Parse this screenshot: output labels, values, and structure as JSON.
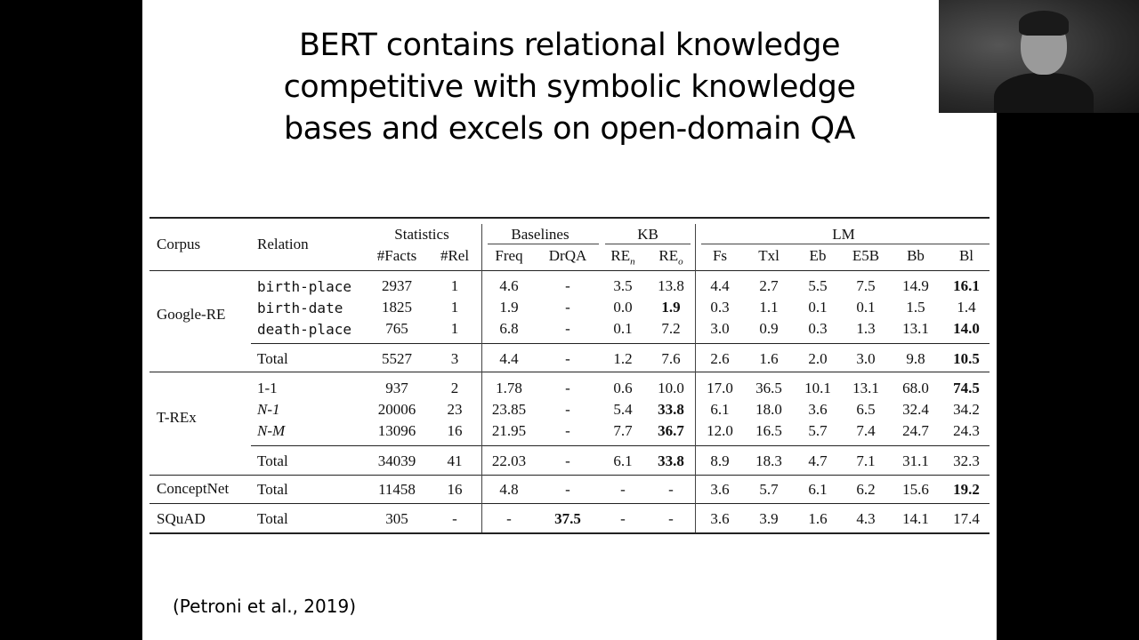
{
  "slide": {
    "title_lines": [
      "BERT contains relational knowledge",
      "competitive with symbolic knowledge",
      "bases and excels on open-domain QA"
    ],
    "citation": "(Petroni et al., 2019)"
  },
  "table": {
    "group_headers": {
      "statistics": "Statistics",
      "baselines": "Baselines",
      "kb": "KB",
      "lm": "LM"
    },
    "corpus_header": "Corpus",
    "relation_header": "Relation",
    "col_headers": {
      "facts": "#Facts",
      "rel": "#Rel",
      "freq": "Freq",
      "drqa": "DrQA",
      "re": "RE",
      "re_n_sub": "n",
      "re_o_sub": "o",
      "fs": "Fs",
      "txl": "Txl",
      "eb": "Eb",
      "e5b": "E5B",
      "bb": "Bb",
      "bl": "Bl"
    },
    "corpora": {
      "google_re": "Google-RE",
      "t_rex": "T-REx",
      "conceptnet": "ConceptNet",
      "squad": "SQuAD"
    },
    "rows": [
      {
        "relation": "birth-place",
        "facts": "2937",
        "rel": "1",
        "freq": "4.6",
        "drqa": "-",
        "ren": "3.5",
        "reo": "13.8",
        "fs": "4.4",
        "txl": "2.7",
        "eb": "5.5",
        "e5b": "7.5",
        "bb": "14.9",
        "bl": "16.1"
      },
      {
        "relation": "birth-date",
        "facts": "1825",
        "rel": "1",
        "freq": "1.9",
        "drqa": "-",
        "ren": "0.0",
        "reo": "1.9",
        "fs": "0.3",
        "txl": "1.1",
        "eb": "0.1",
        "e5b": "0.1",
        "bb": "1.5",
        "bl": "1.4"
      },
      {
        "relation": "death-place",
        "facts": "765",
        "rel": "1",
        "freq": "6.8",
        "drqa": "-",
        "ren": "0.1",
        "reo": "7.2",
        "fs": "3.0",
        "txl": "0.9",
        "eb": "0.3",
        "e5b": "1.3",
        "bb": "13.1",
        "bl": "14.0"
      },
      {
        "relation": "Total",
        "facts": "5527",
        "rel": "3",
        "freq": "4.4",
        "drqa": "-",
        "ren": "1.2",
        "reo": "7.6",
        "fs": "2.6",
        "txl": "1.6",
        "eb": "2.0",
        "e5b": "3.0",
        "bb": "9.8",
        "bl": "10.5"
      },
      {
        "relation": "1-1",
        "facts": "937",
        "rel": "2",
        "freq": "1.78",
        "drqa": "-",
        "ren": "0.6",
        "reo": "10.0",
        "fs": "17.0",
        "txl": "36.5",
        "eb": "10.1",
        "e5b": "13.1",
        "bb": "68.0",
        "bl": "74.5"
      },
      {
        "relation": "N-1",
        "facts": "20006",
        "rel": "23",
        "freq": "23.85",
        "drqa": "-",
        "ren": "5.4",
        "reo": "33.8",
        "fs": "6.1",
        "txl": "18.0",
        "eb": "3.6",
        "e5b": "6.5",
        "bb": "32.4",
        "bl": "34.2"
      },
      {
        "relation": "N-M",
        "facts": "13096",
        "rel": "16",
        "freq": "21.95",
        "drqa": "-",
        "ren": "7.7",
        "reo": "36.7",
        "fs": "12.0",
        "txl": "16.5",
        "eb": "5.7",
        "e5b": "7.4",
        "bb": "24.7",
        "bl": "24.3"
      },
      {
        "relation": "Total",
        "facts": "34039",
        "rel": "41",
        "freq": "22.03",
        "drqa": "-",
        "ren": "6.1",
        "reo": "33.8",
        "fs": "8.9",
        "txl": "18.3",
        "eb": "4.7",
        "e5b": "7.1",
        "bb": "31.1",
        "bl": "32.3"
      },
      {
        "relation": "Total",
        "facts": "11458",
        "rel": "16",
        "freq": "4.8",
        "drqa": "-",
        "ren": "-",
        "reo": "-",
        "fs": "3.6",
        "txl": "5.7",
        "eb": "6.1",
        "e5b": "6.2",
        "bb": "15.6",
        "bl": "19.2"
      },
      {
        "relation": "Total",
        "facts": "305",
        "rel": "-",
        "freq": "-",
        "drqa": "37.5",
        "ren": "-",
        "reo": "-",
        "fs": "3.6",
        "txl": "3.9",
        "eb": "1.6",
        "e5b": "4.3",
        "bb": "14.1",
        "bl": "17.4"
      }
    ]
  },
  "webcam": {
    "icon": "speaker-video-thumbnail"
  }
}
